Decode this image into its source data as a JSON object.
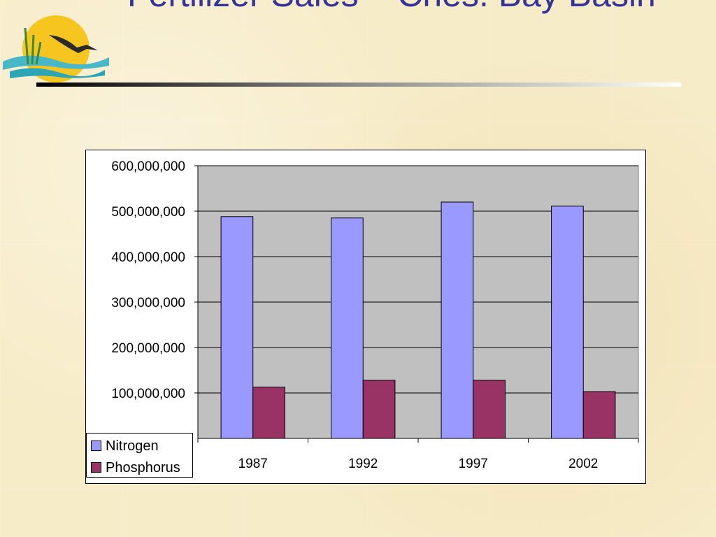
{
  "slide": {
    "title": "Fertilizer Sales – Ches. Bay Basin"
  },
  "colors": {
    "title": "#333399",
    "plot_background": "#c0c0c0",
    "nitrogen": "#9999ff",
    "phosphorus": "#993366"
  },
  "chart_data": {
    "type": "bar",
    "title": "",
    "xlabel": "",
    "ylabel": "",
    "categories": [
      "1987",
      "1992",
      "1997",
      "2002"
    ],
    "series": [
      {
        "name": "Nitrogen",
        "color": "#9999ff",
        "values": [
          488000000,
          485000000,
          520000000,
          511000000
        ]
      },
      {
        "name": "Phosphorus",
        "color": "#993366",
        "values": [
          113000000,
          128000000,
          128000000,
          103000000
        ]
      }
    ],
    "ylim": [
      0,
      600000000
    ],
    "yticks": [
      "100,000,000",
      "200,000,000",
      "300,000,000",
      "400,000,000",
      "500,000,000",
      "600,000,000"
    ],
    "grid": true,
    "legend": "bottom-left"
  }
}
